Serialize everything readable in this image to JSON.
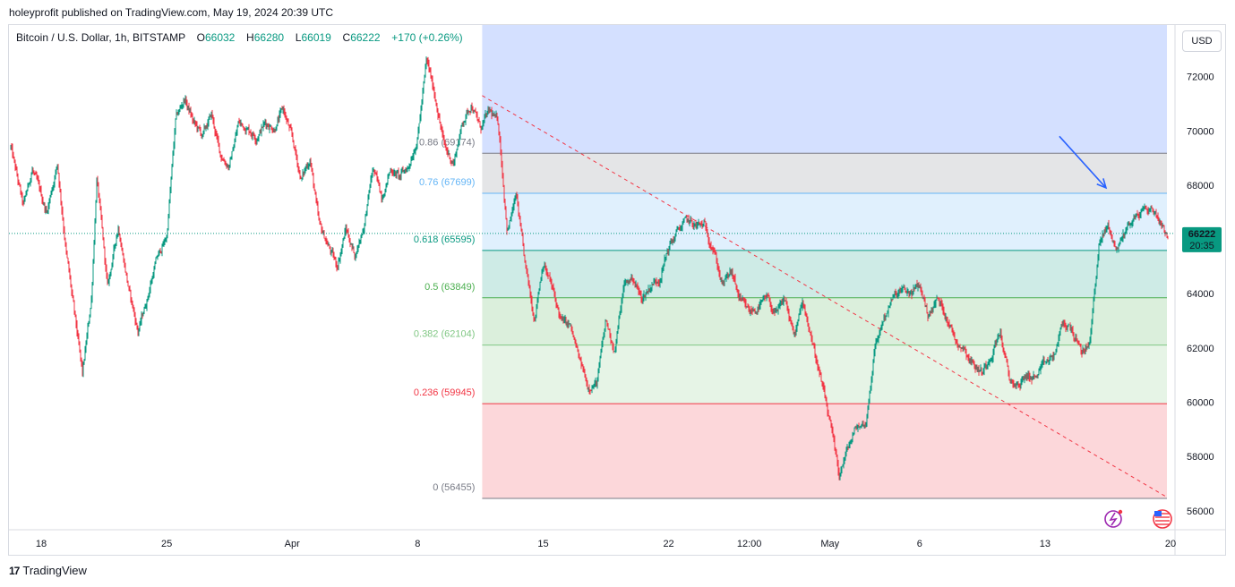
{
  "header": {
    "published": "holeyprofit published on TradingView.com, May 19, 2024 20:39 UTC"
  },
  "legend": {
    "symbol": "Bitcoin / U.S. Dollar, 1h, BITSTAMP",
    "o_label": "O",
    "o_value": "66032",
    "h_label": "H",
    "h_value": "66280",
    "l_label": "L",
    "l_value": "66019",
    "c_label": "C",
    "c_value": "66222",
    "change": "+170 (+0.26%)"
  },
  "currency_button": "USD",
  "price_tag": {
    "price": "66222",
    "countdown": "20:35"
  },
  "footer": {
    "brand": "TradingView",
    "logo_text": "17"
  },
  "colors": {
    "up": "#089981",
    "down": "#f23645",
    "accent": "#2962ff",
    "trend": "#f23645"
  },
  "chart_data": {
    "type": "candlestick",
    "title": "Bitcoin / U.S. Dollar, 1h, BITSTAMP",
    "y_range": [
      55300,
      73900
    ],
    "y_ticks": [
      {
        "value": 72000,
        "label": "72000"
      },
      {
        "value": 70000,
        "label": "70000"
      },
      {
        "value": 68000,
        "label": "68000"
      },
      {
        "value": 66000,
        "label": "66000"
      },
      {
        "value": 64000,
        "label": "64000"
      },
      {
        "value": 62000,
        "label": "62000"
      },
      {
        "value": 60000,
        "label": "60000"
      },
      {
        "value": 58000,
        "label": "58000"
      },
      {
        "value": 56000,
        "label": "56000"
      }
    ],
    "x_range_days": [
      -1.8,
      63.2
    ],
    "x_ticks": [
      {
        "day": 0,
        "label": "18"
      },
      {
        "day": 7,
        "label": "25"
      },
      {
        "day": 14,
        "label": "Apr"
      },
      {
        "day": 21,
        "label": "8"
      },
      {
        "day": 28,
        "label": "15"
      },
      {
        "day": 35,
        "label": "22"
      },
      {
        "day": 39.5,
        "label": "12:00"
      },
      {
        "day": 44,
        "label": "May"
      },
      {
        "day": 49,
        "label": "6"
      },
      {
        "day": 56,
        "label": "13"
      },
      {
        "day": 63,
        "label": "20"
      }
    ],
    "price_path": [
      [
        -1.7,
        69400
      ],
      [
        -1.0,
        67200
      ],
      [
        -0.5,
        68600
      ],
      [
        0.3,
        67000
      ],
      [
        0.9,
        68800
      ],
      [
        1.4,
        65500
      ],
      [
        1.9,
        63000
      ],
      [
        2.3,
        61000
      ],
      [
        2.8,
        63800
      ],
      [
        3.1,
        68300
      ],
      [
        3.7,
        64200
      ],
      [
        4.3,
        66500
      ],
      [
        4.9,
        64100
      ],
      [
        5.4,
        62600
      ],
      [
        5.9,
        63800
      ],
      [
        6.4,
        65200
      ],
      [
        7.0,
        66100
      ],
      [
        7.5,
        70400
      ],
      [
        8.0,
        71200
      ],
      [
        8.5,
        70300
      ],
      [
        9.0,
        69800
      ],
      [
        9.5,
        70600
      ],
      [
        10.0,
        69100
      ],
      [
        10.5,
        68700
      ],
      [
        11.0,
        70300
      ],
      [
        11.5,
        70100
      ],
      [
        12.0,
        69800
      ],
      [
        12.5,
        70300
      ],
      [
        13.0,
        70100
      ],
      [
        13.5,
        70800
      ],
      [
        14.0,
        69700
      ],
      [
        14.5,
        68200
      ],
      [
        15.0,
        69000
      ],
      [
        15.5,
        66500
      ],
      [
        16.0,
        65800
      ],
      [
        16.5,
        65000
      ],
      [
        17.0,
        66400
      ],
      [
        17.5,
        65400
      ],
      [
        18.0,
        66500
      ],
      [
        18.5,
        68600
      ],
      [
        19.0,
        67600
      ],
      [
        19.5,
        68600
      ],
      [
        20.0,
        68300
      ],
      [
        20.5,
        68700
      ],
      [
        21.0,
        69800
      ],
      [
        21.5,
        72600
      ],
      [
        22.0,
        71200
      ],
      [
        22.5,
        69400
      ],
      [
        23.0,
        68800
      ],
      [
        23.5,
        70300
      ],
      [
        24.0,
        71000
      ],
      [
        24.5,
        70100
      ],
      [
        25.0,
        70700
      ],
      [
        25.5,
        70300
      ],
      [
        26.0,
        66300
      ],
      [
        26.5,
        67600
      ],
      [
        27.0,
        65000
      ],
      [
        27.5,
        63100
      ],
      [
        28.0,
        65200
      ],
      [
        28.5,
        64200
      ],
      [
        29.0,
        63000
      ],
      [
        29.5,
        62800
      ],
      [
        30.0,
        61600
      ],
      [
        30.5,
        60600
      ],
      [
        31.0,
        60700
      ],
      [
        31.5,
        63000
      ],
      [
        32.0,
        61900
      ],
      [
        32.5,
        64300
      ],
      [
        33.0,
        64600
      ],
      [
        33.5,
        63800
      ],
      [
        34.0,
        64300
      ],
      [
        34.5,
        64600
      ],
      [
        35.0,
        65700
      ],
      [
        35.5,
        66300
      ],
      [
        36.0,
        66700
      ],
      [
        36.5,
        66500
      ],
      [
        37.0,
        66500
      ],
      [
        37.5,
        65700
      ],
      [
        38.0,
        64300
      ],
      [
        38.5,
        64800
      ],
      [
        39.0,
        63700
      ],
      [
        39.5,
        63300
      ],
      [
        40.0,
        63500
      ],
      [
        40.5,
        63800
      ],
      [
        41.0,
        63200
      ],
      [
        41.5,
        63800
      ],
      [
        42.0,
        62400
      ],
      [
        42.5,
        63700
      ],
      [
        43.0,
        62300
      ],
      [
        43.5,
        60800
      ],
      [
        44.0,
        59200
      ],
      [
        44.5,
        57300
      ],
      [
        45.0,
        58300
      ],
      [
        45.5,
        59100
      ],
      [
        46.0,
        59200
      ],
      [
        46.5,
        62000
      ],
      [
        47.0,
        63100
      ],
      [
        47.5,
        63800
      ],
      [
        48.0,
        64100
      ],
      [
        48.5,
        64000
      ],
      [
        49.0,
        64300
      ],
      [
        49.5,
        63200
      ],
      [
        50.0,
        63800
      ],
      [
        50.5,
        63200
      ],
      [
        51.0,
        62300
      ],
      [
        51.5,
        62000
      ],
      [
        52.0,
        61400
      ],
      [
        52.5,
        61100
      ],
      [
        53.0,
        61800
      ],
      [
        53.5,
        62600
      ],
      [
        54.0,
        60800
      ],
      [
        54.5,
        60600
      ],
      [
        55.0,
        61000
      ],
      [
        55.5,
        60900
      ],
      [
        56.0,
        61400
      ],
      [
        56.5,
        61700
      ],
      [
        57.0,
        62900
      ],
      [
        57.5,
        62700
      ],
      [
        58.0,
        61800
      ],
      [
        58.5,
        62200
      ],
      [
        59.0,
        65800
      ],
      [
        59.5,
        66500
      ],
      [
        60.0,
        65600
      ],
      [
        60.5,
        66400
      ],
      [
        61.0,
        66800
      ],
      [
        61.5,
        67100
      ],
      [
        62.0,
        67100
      ],
      [
        62.5,
        66600
      ],
      [
        62.9,
        66100
      ]
    ],
    "fib_anchor_start_day": 24.6,
    "fib_anchor_end_day": 63.2,
    "fib_levels": [
      {
        "ratio": "0",
        "price": 56455,
        "label": "0 (56455)",
        "color": "#787b86"
      },
      {
        "ratio": "0.236",
        "price": 59945,
        "label": "0.236 (59945)",
        "color": "#f23645"
      },
      {
        "ratio": "0.382",
        "price": 62104,
        "label": "0.382 (62104)",
        "color": "#81c784"
      },
      {
        "ratio": "0.5",
        "price": 63849,
        "label": "0.5 (63849)",
        "color": "#4caf50"
      },
      {
        "ratio": "0.618",
        "price": 65595,
        "label": "0.618 (65595)",
        "color": "#089981"
      },
      {
        "ratio": "0.76",
        "price": 67699,
        "label": "0.76 (67699)",
        "color": "#64b5f6"
      },
      {
        "ratio": "0.86",
        "price": 69174,
        "label": "0.86 (69174)",
        "color": "#787b86"
      },
      {
        "ratio": "1",
        "price": 73900,
        "label": "",
        "color": "#2962ff"
      }
    ],
    "fib_bands": [
      {
        "from": 73900,
        "to": 69174,
        "color": "rgba(41,98,255,0.20)"
      },
      {
        "from": 69174,
        "to": 67699,
        "color": "rgba(120,123,134,0.20)"
      },
      {
        "from": 67699,
        "to": 65595,
        "color": "rgba(100,181,246,0.20)"
      },
      {
        "from": 65595,
        "to": 63849,
        "color": "rgba(8,153,129,0.20)"
      },
      {
        "from": 63849,
        "to": 62104,
        "color": "rgba(76,175,80,0.20)"
      },
      {
        "from": 62104,
        "to": 59945,
        "color": "rgba(129,199,132,0.20)"
      },
      {
        "from": 59945,
        "to": 56455,
        "color": "rgba(242,54,69,0.20)"
      }
    ],
    "trendline": [
      [
        24.6,
        71300
      ],
      [
        63.2,
        56500
      ]
    ],
    "arrow": [
      [
        56.8,
        69800
      ],
      [
        59.4,
        67900
      ]
    ],
    "last_price": 66222
  }
}
